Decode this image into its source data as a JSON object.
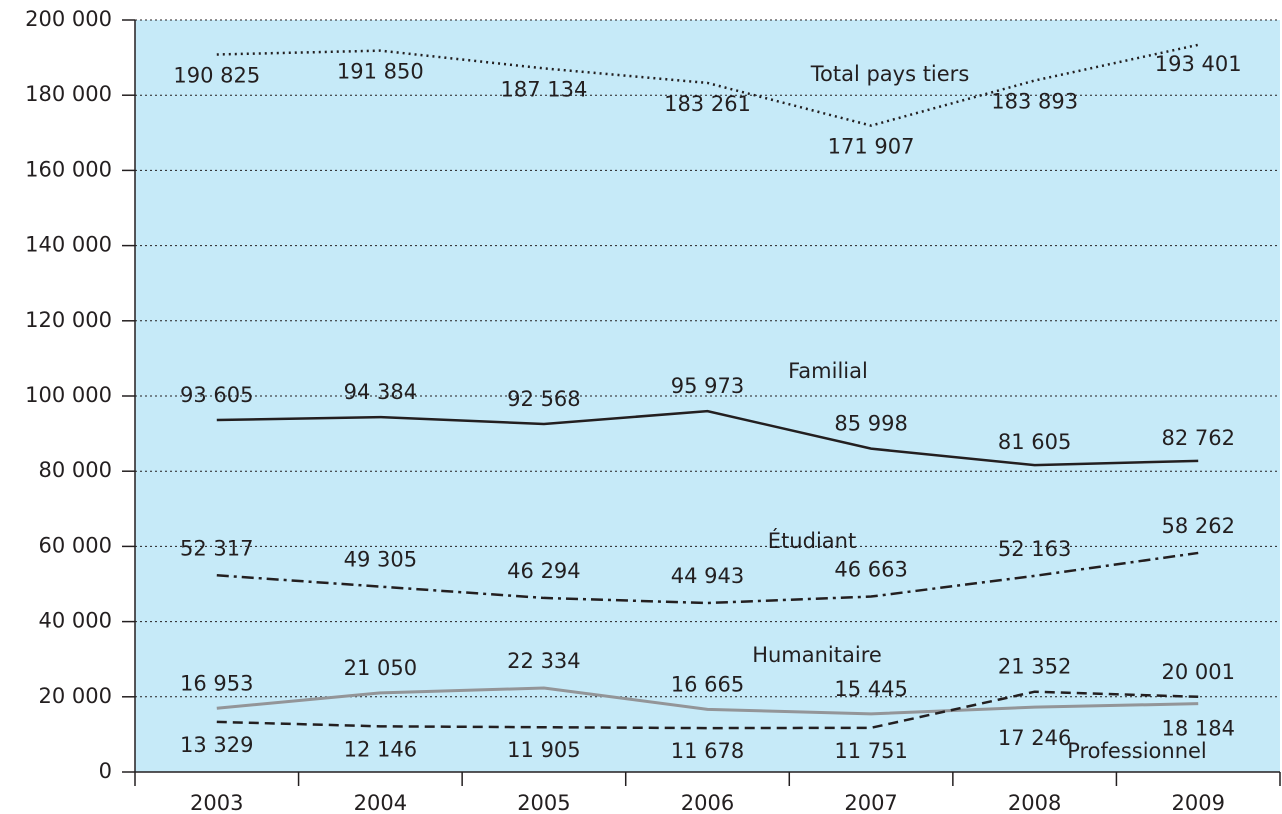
{
  "chart_data": {
    "type": "line",
    "categories": [
      "2003",
      "2004",
      "2005",
      "2006",
      "2007",
      "2008",
      "2009"
    ],
    "series": [
      {
        "name": "Total pays tiers",
        "color": "#231f20",
        "dash": "dotted",
        "values": [
          190825,
          191850,
          187134,
          183261,
          171907,
          183893,
          193401
        ],
        "value_labels": [
          "190 825",
          "191 850",
          "187 134",
          "183 261",
          "171 907",
          "183 893",
          "193 401"
        ]
      },
      {
        "name": "Familial",
        "color": "#231f20",
        "dash": "solid",
        "values": [
          93605,
          94384,
          92568,
          95973,
          85998,
          81605,
          82762
        ],
        "value_labels": [
          "93 605",
          "94 384",
          "92 568",
          "95 973",
          "85 998",
          "81 605",
          "82 762"
        ]
      },
      {
        "name": "Étudiant",
        "color": "#231f20",
        "dash": "dashdot",
        "values": [
          52317,
          49305,
          46294,
          44943,
          46663,
          52163,
          58262
        ],
        "value_labels": [
          "52 317",
          "49 305",
          "46 294",
          "44 943",
          "46 663",
          "52 163",
          "58 262"
        ]
      },
      {
        "name": "Humanitaire",
        "color": "#939598",
        "dash": "solid",
        "values": [
          16953,
          21050,
          22334,
          16665,
          15445,
          17246,
          18184
        ],
        "value_labels": [
          "16 953",
          "21 050",
          "22 334",
          "16 665",
          "15 445",
          "17 246",
          "18 184"
        ]
      },
      {
        "name": "Professionnel",
        "color": "#231f20",
        "dash": "dashed",
        "values": [
          13329,
          12146,
          11905,
          11678,
          11751,
          21352,
          20001
        ],
        "value_labels": [
          "13 329",
          "12 146",
          "11 905",
          "11 678",
          "11 751",
          "21 352",
          "20 001"
        ]
      }
    ],
    "ylim": [
      0,
      200000
    ],
    "yticks": [
      0,
      {
        "value": 20000,
        "label": "20 000"
      },
      {
        "value": 40000,
        "label": "40 000"
      },
      {
        "value": 60000,
        "label": "60 000"
      },
      {
        "value": 80000,
        "label": "80 000"
      },
      {
        "value": 100000,
        "label": "100 000"
      },
      {
        "value": 120000,
        "label": "120 000"
      },
      {
        "value": 140000,
        "label": "140 000"
      },
      {
        "value": 160000,
        "label": "160 000"
      },
      {
        "value": 180000,
        "label": "180 000"
      },
      {
        "value": 200000,
        "label": "200 000"
      }
    ],
    "grid": true,
    "background": "#c6eaf8"
  }
}
